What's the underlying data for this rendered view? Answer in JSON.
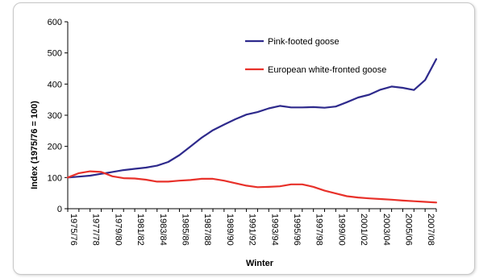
{
  "chart_data": {
    "type": "line",
    "xlabel": "Winter",
    "ylabel": "Index (1975/76 = 100)",
    "ylim": [
      0,
      600
    ],
    "yticks": [
      0,
      100,
      200,
      300,
      400,
      500,
      600
    ],
    "grid": false,
    "legend_position": "top-right",
    "x": [
      "1975/76",
      "1976/77",
      "1977/78",
      "1978/79",
      "1979/80",
      "1980/81",
      "1981/82",
      "1982/83",
      "1983/84",
      "1984/85",
      "1985/86",
      "1986/87",
      "1987/88",
      "1988/89",
      "1989/90",
      "1990/91",
      "1991/92",
      "1992/93",
      "1993/94",
      "1994/95",
      "1995/96",
      "1996/97",
      "1997/98",
      "1998/99",
      "1999/00",
      "2000/01",
      "2001/02",
      "2002/03",
      "2003/04",
      "2004/05",
      "2005/06",
      "2006/07",
      "2007/08",
      "2008/09"
    ],
    "xtick_labels": [
      "1975/76",
      "1977/78",
      "1979/80",
      "1981/82",
      "1983/84",
      "1985/86",
      "1987/88",
      "1989/90",
      "1991/92",
      "1993/94",
      "1995/96",
      "1997/98",
      "1999/00",
      "2001/02",
      "2003/04",
      "2005/06",
      "2007/08"
    ],
    "series": [
      {
        "name": "Pink-footed goose",
        "color": "#2e2a8c",
        "values": [
          100,
          103,
          106,
          112,
          118,
          124,
          128,
          132,
          138,
          150,
          172,
          200,
          228,
          252,
          270,
          287,
          302,
          310,
          322,
          330,
          325,
          325,
          326,
          324,
          328,
          342,
          357,
          366,
          382,
          392,
          388,
          381,
          413,
          480
        ]
      },
      {
        "name": "European white-fronted goose",
        "color": "#e8312a",
        "values": [
          100,
          114,
          120,
          118,
          104,
          98,
          97,
          93,
          87,
          87,
          90,
          92,
          96,
          96,
          90,
          82,
          74,
          69,
          70,
          72,
          78,
          78,
          70,
          58,
          49,
          40,
          36,
          33,
          31,
          29,
          26,
          24,
          22,
          20
        ]
      }
    ]
  }
}
